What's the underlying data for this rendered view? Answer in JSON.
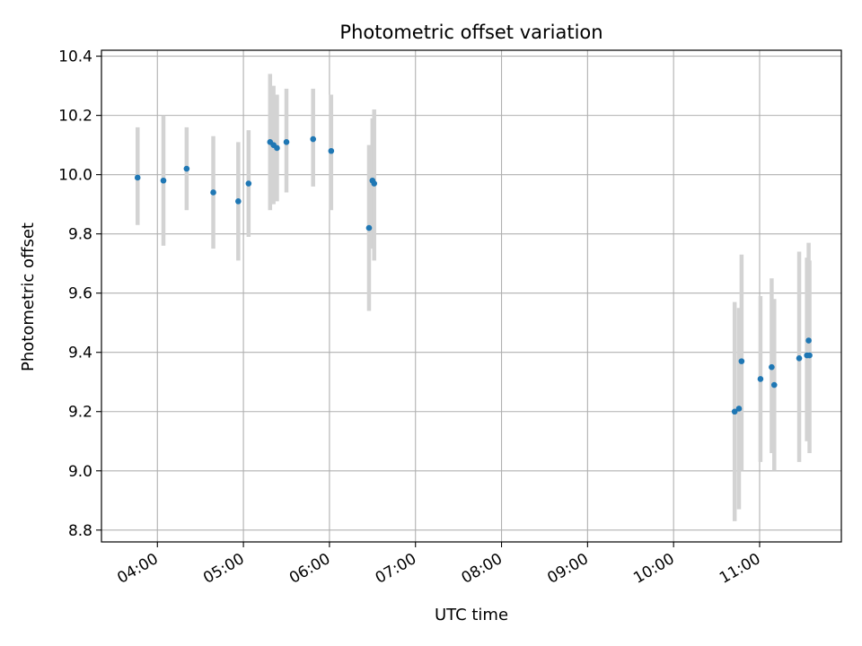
{
  "chart_data": {
    "type": "scatter",
    "title": "Photometric offset variation",
    "xlabel": "UTC time",
    "ylabel": "Photometric offset",
    "x_unit": "UTC time (hours)",
    "xlim": [
      3.35,
      11.95
    ],
    "ylim": [
      8.76,
      10.42
    ],
    "x_ticks": [
      4,
      5,
      6,
      7,
      8,
      9,
      10,
      11
    ],
    "x_tick_labels": [
      "04:00",
      "05:00",
      "06:00",
      "07:00",
      "08:00",
      "09:00",
      "10:00",
      "11:00"
    ],
    "y_ticks": [
      8.8,
      9.0,
      9.2,
      9.4,
      9.6,
      9.8,
      10.0,
      10.2,
      10.4
    ],
    "y_tick_labels": [
      "8.8",
      "9.0",
      "9.2",
      "9.4",
      "9.6",
      "9.8",
      "10.0",
      "10.2",
      "10.4"
    ],
    "grid": true,
    "colors": {
      "point": "#1f77b4",
      "errorbar": "#d3d3d3",
      "grid": "#b0b0b0"
    },
    "points": [
      {
        "x": 3.77,
        "y": 9.99,
        "lo": 9.83,
        "hi": 10.16
      },
      {
        "x": 4.07,
        "y": 9.98,
        "lo": 9.76,
        "hi": 10.2
      },
      {
        "x": 4.34,
        "y": 10.02,
        "lo": 9.88,
        "hi": 10.16
      },
      {
        "x": 4.65,
        "y": 9.94,
        "lo": 9.75,
        "hi": 10.13
      },
      {
        "x": 4.94,
        "y": 9.91,
        "lo": 9.71,
        "hi": 10.11
      },
      {
        "x": 5.06,
        "y": 9.97,
        "lo": 9.79,
        "hi": 10.15
      },
      {
        "x": 5.31,
        "y": 10.11,
        "lo": 9.88,
        "hi": 10.34
      },
      {
        "x": 5.35,
        "y": 10.1,
        "lo": 9.9,
        "hi": 10.3
      },
      {
        "x": 5.39,
        "y": 10.09,
        "lo": 9.91,
        "hi": 10.27
      },
      {
        "x": 5.5,
        "y": 10.11,
        "lo": 9.94,
        "hi": 10.29
      },
      {
        "x": 5.81,
        "y": 10.12,
        "lo": 9.96,
        "hi": 10.29
      },
      {
        "x": 6.02,
        "y": 10.08,
        "lo": 9.88,
        "hi": 10.27
      },
      {
        "x": 6.46,
        "y": 9.82,
        "lo": 9.54,
        "hi": 10.1
      },
      {
        "x": 6.5,
        "y": 9.98,
        "lo": 9.75,
        "hi": 10.19
      },
      {
        "x": 6.52,
        "y": 9.97,
        "lo": 9.71,
        "hi": 10.22
      },
      {
        "x": 10.71,
        "y": 9.2,
        "lo": 8.83,
        "hi": 9.57
      },
      {
        "x": 10.76,
        "y": 9.21,
        "lo": 8.87,
        "hi": 9.55
      },
      {
        "x": 10.79,
        "y": 9.37,
        "lo": 9.0,
        "hi": 9.73
      },
      {
        "x": 11.01,
        "y": 9.31,
        "lo": 9.03,
        "hi": 9.59
      },
      {
        "x": 11.14,
        "y": 9.35,
        "lo": 9.06,
        "hi": 9.65
      },
      {
        "x": 11.17,
        "y": 9.29,
        "lo": 9.0,
        "hi": 9.58
      },
      {
        "x": 11.46,
        "y": 9.38,
        "lo": 9.03,
        "hi": 9.74
      },
      {
        "x": 11.55,
        "y": 9.39,
        "lo": 9.1,
        "hi": 9.72
      },
      {
        "x": 11.57,
        "y": 9.44,
        "lo": 9.11,
        "hi": 9.77
      },
      {
        "x": 11.58,
        "y": 9.39,
        "lo": 9.06,
        "hi": 9.71
      }
    ]
  }
}
